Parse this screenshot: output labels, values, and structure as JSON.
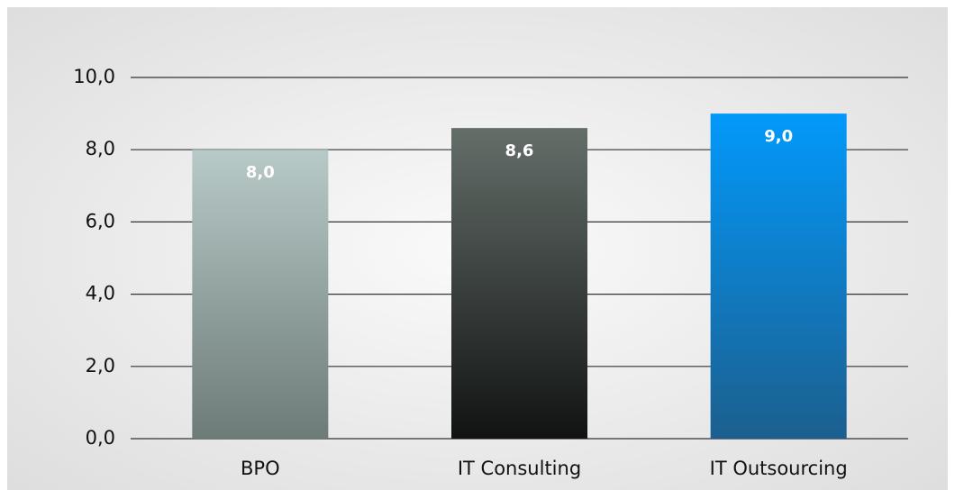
{
  "chart_data": {
    "type": "bar",
    "categories": [
      "BPO",
      "IT Consulting",
      "IT Outsourcing"
    ],
    "values": [
      8.0,
      8.6,
      9.0
    ],
    "value_labels": [
      "8,0",
      "8,6",
      "9,0"
    ],
    "colors": [
      [
        "#b8cac8",
        "#6d7b78"
      ],
      [
        "#646e69",
        "#111313"
      ],
      [
        "#0299fb",
        "#1c5f8e"
      ]
    ],
    "ylim": [
      0,
      10
    ],
    "yticks": [
      {
        "value": 0,
        "label": "0,0"
      },
      {
        "value": 2,
        "label": "2,0"
      },
      {
        "value": 4,
        "label": "4,0"
      },
      {
        "value": 6,
        "label": "6,0"
      },
      {
        "value": 8,
        "label": "8,0"
      },
      {
        "value": 10,
        "label": "10,0"
      }
    ],
    "grid": true
  }
}
